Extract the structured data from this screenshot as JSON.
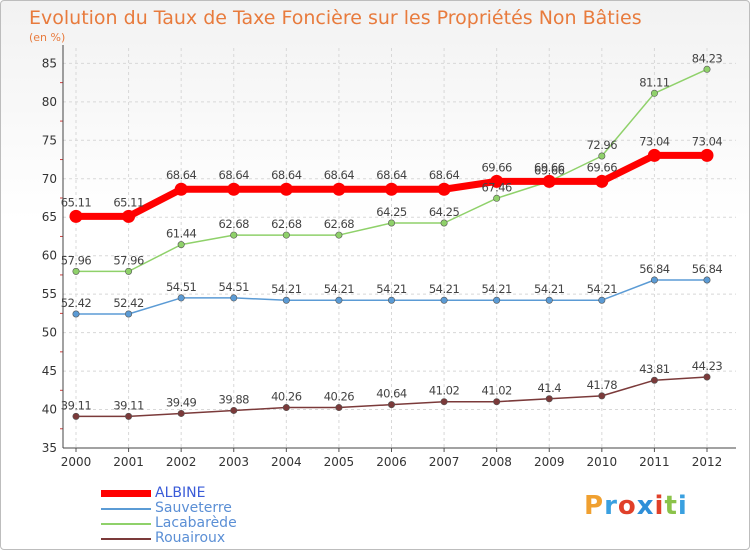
{
  "title": "Evolution du Taux de Taxe Foncière sur les Propriétés Non Bâties",
  "subtitle": "(en %)",
  "logo": {
    "text": "Proxiti",
    "letters": [
      "P",
      "r",
      "o",
      "x",
      "i",
      "t",
      "i"
    ],
    "colors": [
      "#f0a030",
      "#3aa0e0",
      "#e0402a",
      "#2f8fd8",
      "#e0402a",
      "#8bc34a",
      "#3aa0e0"
    ]
  },
  "chart_data": {
    "type": "line",
    "title": "Evolution du Taux de Taxe Foncière sur les Propriétés Non Bâties",
    "ylabel": "(en %)",
    "x": [
      "2000",
      "2001",
      "2002",
      "2003",
      "2004",
      "2005",
      "2006",
      "2007",
      "2008",
      "2009",
      "2010",
      "2011",
      "2012"
    ],
    "ylim": [
      35,
      87
    ],
    "yticks": [
      35,
      40,
      45,
      50,
      55,
      60,
      65,
      70,
      75,
      80,
      85
    ],
    "grid": true,
    "legend": "bottom-left",
    "series": [
      {
        "name": "ALBINE",
        "color": "#ff0000",
        "emphasis": true,
        "values": [
          65.11,
          65.11,
          68.64,
          68.64,
          68.64,
          68.64,
          68.64,
          68.64,
          69.66,
          69.66,
          69.66,
          73.04,
          73.04
        ],
        "labels": [
          "65.11",
          "65.11",
          "68.64",
          "68.64",
          "68.64",
          "68.64",
          "68.64",
          "68.64",
          "69.66",
          "69.66",
          "69.66",
          "73.04",
          "73.04"
        ]
      },
      {
        "name": "Sauveterre",
        "color": "#5b9bd5",
        "values": [
          52.42,
          52.42,
          54.51,
          54.51,
          54.21,
          54.21,
          54.21,
          54.21,
          54.21,
          54.21,
          54.21,
          56.84,
          56.84
        ],
        "labels": [
          "52.42",
          "52.42",
          "54.51",
          "54.51",
          "54.21",
          "54.21",
          "54.21",
          "54.21",
          "54.21",
          "54.21",
          "54.21",
          "56.84",
          "56.84"
        ]
      },
      {
        "name": "Lacabarède",
        "color": "#8fd16a",
        "values": [
          57.96,
          57.96,
          61.44,
          62.68,
          62.68,
          62.68,
          64.25,
          64.25,
          67.46,
          69.66,
          72.96,
          81.11,
          84.23
        ],
        "labels": [
          "57.96",
          "57.96",
          "61.44",
          "62.68",
          "62.68",
          "62.68",
          "64.25",
          "64.25",
          "67.46",
          "69.66",
          "72.96",
          "81.11",
          "84.23"
        ]
      },
      {
        "name": "Rouairoux",
        "color": "#7b3a3a",
        "values": [
          39.11,
          39.11,
          39.49,
          39.88,
          40.26,
          40.26,
          40.64,
          41.02,
          41.02,
          41.4,
          41.78,
          43.81,
          44.23
        ],
        "labels": [
          "39.11",
          "39.11",
          "39.49",
          "39.88",
          "40.26",
          "40.26",
          "40.64",
          "41.02",
          "41.02",
          "41.4",
          "41.78",
          "43.81",
          "44.23"
        ]
      }
    ]
  }
}
